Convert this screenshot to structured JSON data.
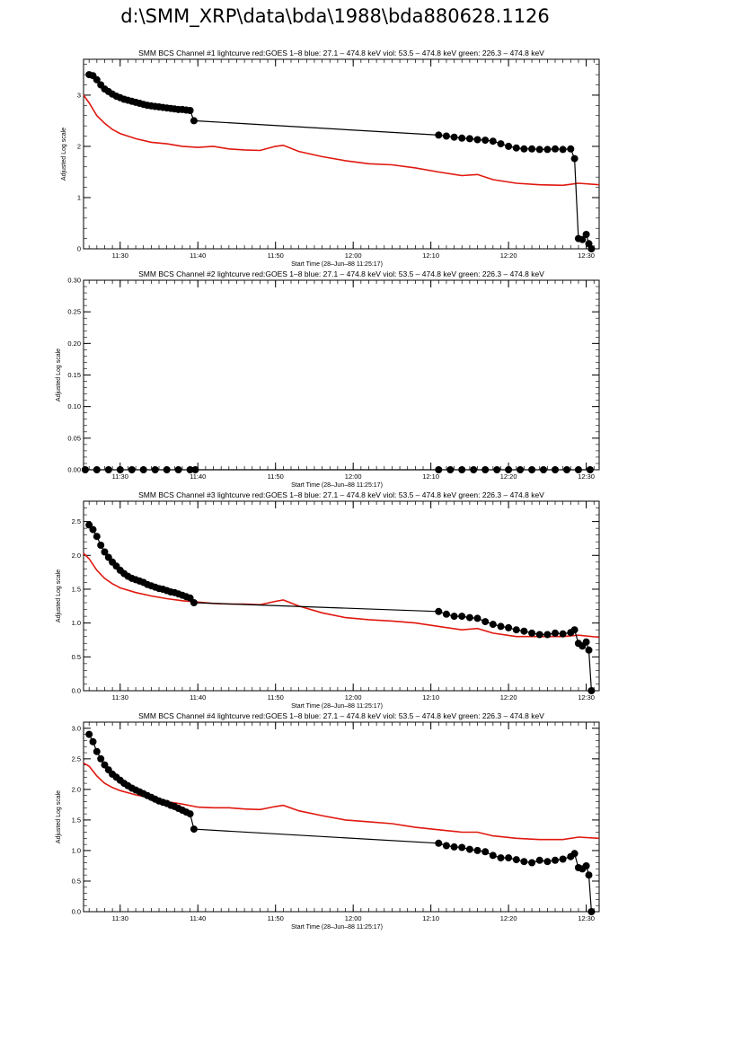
{
  "page": {
    "title": "d:\\SMM_XRP\\data\\bda\\1988\\bda880628.1126"
  },
  "colors": {
    "goes": "#e0180f",
    "bcs": "#000000"
  },
  "chart_data": [
    {
      "type": "line",
      "title": "SMM BCS Channel #1 lightcurve  red:GOES 1–8  blue: 27.1 – 474.8 keV  viol: 53.5 – 474.8 keV  green: 226.3 – 474.8 keV",
      "xlabel": "Start Time (28–Jun–88 11:25:17)",
      "ylabel": "Adjusted Log scale",
      "xlim": [
        "11:25:17",
        "12:31:40"
      ],
      "xticks": [
        "11:30",
        "11:40",
        "11:50",
        "12:00",
        "12:10",
        "12:20",
        "12:30"
      ],
      "ylim": [
        0,
        3.7
      ],
      "yticks": [
        "0",
        "1",
        "2",
        "3"
      ],
      "series": [
        {
          "color": "red",
          "marker": "none",
          "x": [
            "11:25:17",
            "11:26:00",
            "11:27:00",
            "11:28:00",
            "11:29:00",
            "11:30:00",
            "11:32:00",
            "11:34:00",
            "11:36:00",
            "11:38:00",
            "11:40:00",
            "11:42:00",
            "11:44:00",
            "11:46:00",
            "11:48:00",
            "11:50:00",
            "11:51:00",
            "11:53:00",
            "11:56:00",
            "11:59:00",
            "12:02:00",
            "12:05:00",
            "12:08:00",
            "12:11:00",
            "12:14:00",
            "12:16:00",
            "12:18:00",
            "12:21:00",
            "12:24:00",
            "12:27:00",
            "12:29:00",
            "12:31:40"
          ],
          "y": [
            3.0,
            2.85,
            2.6,
            2.45,
            2.33,
            2.25,
            2.15,
            2.08,
            2.05,
            2.0,
            1.98,
            2.0,
            1.95,
            1.93,
            1.92,
            2.0,
            2.02,
            1.9,
            1.8,
            1.72,
            1.66,
            1.64,
            1.58,
            1.5,
            1.43,
            1.45,
            1.35,
            1.28,
            1.25,
            1.24,
            1.28,
            1.25
          ]
        },
        {
          "color": "black",
          "marker": "dot",
          "x": [
            "11:26:00",
            "11:26:30",
            "11:27:00",
            "11:27:30",
            "11:28:00",
            "11:28:30",
            "11:29:00",
            "11:29:30",
            "11:30:00",
            "11:30:30",
            "11:31:00",
            "11:31:30",
            "11:32:00",
            "11:32:30",
            "11:33:00",
            "11:33:30",
            "11:34:00",
            "11:34:30",
            "11:35:00",
            "11:35:30",
            "11:36:00",
            "11:36:30",
            "11:37:00",
            "11:37:30",
            "11:38:00",
            "11:38:30",
            "11:39:00",
            "11:39:30",
            "12:11:00",
            "12:12:00",
            "12:13:00",
            "12:14:00",
            "12:15:00",
            "12:16:00",
            "12:17:00",
            "12:18:00",
            "12:19:00",
            "12:20:00",
            "12:21:00",
            "12:22:00",
            "12:23:00",
            "12:24:00",
            "12:25:00",
            "12:26:00",
            "12:27:00",
            "12:28:00",
            "12:28:30",
            "12:29:00",
            "12:29:30",
            "12:30:00",
            "12:30:20",
            "12:30:40"
          ],
          "y": [
            3.4,
            3.38,
            3.3,
            3.2,
            3.12,
            3.07,
            3.02,
            2.98,
            2.95,
            2.92,
            2.9,
            2.88,
            2.86,
            2.84,
            2.82,
            2.8,
            2.79,
            2.78,
            2.77,
            2.76,
            2.75,
            2.74,
            2.73,
            2.72,
            2.72,
            2.71,
            2.7,
            2.5,
            2.22,
            2.2,
            2.18,
            2.16,
            2.15,
            2.13,
            2.12,
            2.1,
            2.05,
            2.0,
            1.97,
            1.95,
            1.95,
            1.94,
            1.94,
            1.95,
            1.94,
            1.95,
            1.76,
            0.2,
            0.18,
            0.28,
            0.1,
            0.0
          ]
        }
      ]
    },
    {
      "type": "line",
      "title": "SMM BCS Channel #2 lightcurve  red:GOES 1–8  blue: 27.1 – 474.8 keV  viol: 53.5 – 474.8 keV  green: 226.3 – 474.8 keV",
      "xlabel": "Start Time (28–Jun–88 11:25:17)",
      "ylabel": "Adjusted Log scale",
      "xlim": [
        "11:25:17",
        "12:31:40"
      ],
      "xticks": [
        "11:30",
        "11:40",
        "11:50",
        "12:00",
        "12:10",
        "12:20",
        "12:30"
      ],
      "ylim": [
        0,
        0.3
      ],
      "yticks": [
        "0.00",
        "0.05",
        "0.10",
        "0.15",
        "0.20",
        "0.25",
        "0.30"
      ],
      "series": [
        {
          "color": "black",
          "marker": "dot",
          "x": [
            "11:25:30",
            "11:27:00",
            "11:28:30",
            "11:30:00",
            "11:31:30",
            "11:33:00",
            "11:34:30",
            "11:36:00",
            "11:37:30",
            "11:39:00",
            "11:39:40",
            "12:11:00",
            "12:12:30",
            "12:14:00",
            "12:15:30",
            "12:17:00",
            "12:18:30",
            "12:20:00",
            "12:21:30",
            "12:23:00",
            "12:24:30",
            "12:26:00",
            "12:27:30",
            "12:29:00",
            "12:30:30"
          ],
          "y": [
            0,
            0,
            0,
            0,
            0,
            0,
            0,
            0,
            0,
            0,
            0,
            0,
            0,
            0,
            0,
            0,
            0,
            0,
            0,
            0,
            0,
            0,
            0,
            0,
            0
          ]
        }
      ]
    },
    {
      "type": "line",
      "title": "SMM BCS Channel #3 lightcurve  red:GOES 1–8  blue: 27.1 – 474.8 keV  viol: 53.5 – 474.8 keV  green: 226.3 – 474.8 keV",
      "xlabel": "Start Time (28–Jun–88 11:25:17)",
      "ylabel": "Adjusted Log scale",
      "xlim": [
        "11:25:17",
        "12:31:40"
      ],
      "xticks": [
        "11:30",
        "11:40",
        "11:50",
        "12:00",
        "12:10",
        "12:20",
        "12:30"
      ],
      "ylim": [
        0,
        2.8
      ],
      "yticks": [
        "0.0",
        "0.5",
        "1.0",
        "1.5",
        "2.0",
        "2.5"
      ],
      "series": [
        {
          "color": "red",
          "marker": "none",
          "x": [
            "11:25:17",
            "11:26:00",
            "11:27:00",
            "11:28:00",
            "11:29:00",
            "11:30:00",
            "11:32:00",
            "11:34:00",
            "11:36:00",
            "11:38:00",
            "11:40:00",
            "11:42:00",
            "11:44:00",
            "11:46:00",
            "11:48:00",
            "11:50:00",
            "11:51:00",
            "11:53:00",
            "11:56:00",
            "11:59:00",
            "12:02:00",
            "12:05:00",
            "12:08:00",
            "12:11:00",
            "12:14:00",
            "12:16:00",
            "12:18:00",
            "12:21:00",
            "12:24:00",
            "12:27:00",
            "12:29:00",
            "12:31:40"
          ],
          "y": [
            2.03,
            1.95,
            1.78,
            1.66,
            1.58,
            1.52,
            1.45,
            1.4,
            1.36,
            1.33,
            1.31,
            1.29,
            1.28,
            1.28,
            1.27,
            1.32,
            1.34,
            1.25,
            1.15,
            1.08,
            1.05,
            1.03,
            1.0,
            0.95,
            0.9,
            0.92,
            0.85,
            0.8,
            0.8,
            0.8,
            0.82,
            0.79
          ]
        },
        {
          "color": "black",
          "marker": "dot",
          "x": [
            "11:26:00",
            "11:26:30",
            "11:27:00",
            "11:27:30",
            "11:28:00",
            "11:28:30",
            "11:29:00",
            "11:29:30",
            "11:30:00",
            "11:30:30",
            "11:31:00",
            "11:31:30",
            "11:32:00",
            "11:32:30",
            "11:33:00",
            "11:33:30",
            "11:34:00",
            "11:34:30",
            "11:35:00",
            "11:35:30",
            "11:36:00",
            "11:36:30",
            "11:37:00",
            "11:37:30",
            "11:38:00",
            "11:38:30",
            "11:39:00",
            "11:39:30",
            "12:11:00",
            "12:12:00",
            "12:13:00",
            "12:14:00",
            "12:15:00",
            "12:16:00",
            "12:17:00",
            "12:18:00",
            "12:19:00",
            "12:20:00",
            "12:21:00",
            "12:22:00",
            "12:23:00",
            "12:24:00",
            "12:25:00",
            "12:26:00",
            "12:27:00",
            "12:28:00",
            "12:28:30",
            "12:29:00",
            "12:29:30",
            "12:30:00",
            "12:30:20",
            "12:30:40"
          ],
          "y": [
            2.45,
            2.38,
            2.28,
            2.15,
            2.05,
            1.97,
            1.9,
            1.84,
            1.78,
            1.73,
            1.69,
            1.66,
            1.64,
            1.62,
            1.6,
            1.57,
            1.55,
            1.53,
            1.51,
            1.5,
            1.48,
            1.46,
            1.45,
            1.43,
            1.41,
            1.39,
            1.37,
            1.3,
            1.17,
            1.13,
            1.1,
            1.1,
            1.08,
            1.07,
            1.02,
            0.98,
            0.95,
            0.93,
            0.9,
            0.88,
            0.85,
            0.83,
            0.83,
            0.85,
            0.84,
            0.86,
            0.9,
            0.7,
            0.66,
            0.72,
            0.6,
            0.0
          ]
        }
      ]
    },
    {
      "type": "line",
      "title": "SMM BCS Channel #4 lightcurve  red:GOES 1–8  blue: 27.1 – 474.8 keV  viol: 53.5 – 474.8 keV  green: 226.3 – 474.8 keV",
      "xlabel": "Start Time (28–Jun–88 11:25:17)",
      "ylabel": "Adjusted Log scale",
      "xlim": [
        "11:25:17",
        "12:31:40"
      ],
      "xticks": [
        "11:30",
        "11:40",
        "11:50",
        "12:00",
        "12:10",
        "12:20",
        "12:30"
      ],
      "ylim": [
        0,
        3.1
      ],
      "yticks": [
        "0.0",
        "0.5",
        "1.0",
        "1.5",
        "2.0",
        "2.5",
        "3.0"
      ],
      "series": [
        {
          "color": "red",
          "marker": "none",
          "x": [
            "11:25:17",
            "11:26:00",
            "11:27:00",
            "11:28:00",
            "11:29:00",
            "11:30:00",
            "11:32:00",
            "11:34:00",
            "11:36:00",
            "11:38:00",
            "11:40:00",
            "11:42:00",
            "11:44:00",
            "11:46:00",
            "11:48:00",
            "11:50:00",
            "11:51:00",
            "11:53:00",
            "11:56:00",
            "11:59:00",
            "12:02:00",
            "12:05:00",
            "12:08:00",
            "12:11:00",
            "12:14:00",
            "12:16:00",
            "12:18:00",
            "12:21:00",
            "12:24:00",
            "12:27:00",
            "12:29:00",
            "12:31:40"
          ],
          "y": [
            2.43,
            2.38,
            2.22,
            2.1,
            2.03,
            1.98,
            1.91,
            1.86,
            1.8,
            1.76,
            1.71,
            1.7,
            1.7,
            1.68,
            1.67,
            1.72,
            1.74,
            1.65,
            1.57,
            1.5,
            1.47,
            1.44,
            1.38,
            1.34,
            1.3,
            1.3,
            1.24,
            1.2,
            1.18,
            1.18,
            1.22,
            1.2
          ]
        },
        {
          "color": "black",
          "marker": "dot",
          "x": [
            "11:26:00",
            "11:26:30",
            "11:27:00",
            "11:27:30",
            "11:28:00",
            "11:28:30",
            "11:29:00",
            "11:29:30",
            "11:30:00",
            "11:30:30",
            "11:31:00",
            "11:31:30",
            "11:32:00",
            "11:32:30",
            "11:33:00",
            "11:33:30",
            "11:34:00",
            "11:34:30",
            "11:35:00",
            "11:35:30",
            "11:36:00",
            "11:36:30",
            "11:37:00",
            "11:37:30",
            "11:38:00",
            "11:38:30",
            "11:39:00",
            "11:39:30",
            "12:11:00",
            "12:12:00",
            "12:13:00",
            "12:14:00",
            "12:15:00",
            "12:16:00",
            "12:17:00",
            "12:18:00",
            "12:19:00",
            "12:20:00",
            "12:21:00",
            "12:22:00",
            "12:23:00",
            "12:24:00",
            "12:25:00",
            "12:26:00",
            "12:27:00",
            "12:28:00",
            "12:28:30",
            "12:29:00",
            "12:29:30",
            "12:30:00",
            "12:30:20",
            "12:30:40"
          ],
          "y": [
            2.9,
            2.78,
            2.62,
            2.5,
            2.4,
            2.32,
            2.25,
            2.2,
            2.15,
            2.1,
            2.06,
            2.02,
            1.99,
            1.96,
            1.93,
            1.9,
            1.87,
            1.84,
            1.81,
            1.79,
            1.77,
            1.74,
            1.72,
            1.69,
            1.66,
            1.63,
            1.6,
            1.35,
            1.12,
            1.08,
            1.06,
            1.05,
            1.02,
            1.0,
            0.98,
            0.92,
            0.88,
            0.88,
            0.85,
            0.82,
            0.8,
            0.84,
            0.82,
            0.84,
            0.86,
            0.9,
            0.95,
            0.72,
            0.7,
            0.75,
            0.6,
            0.0
          ]
        }
      ]
    }
  ]
}
